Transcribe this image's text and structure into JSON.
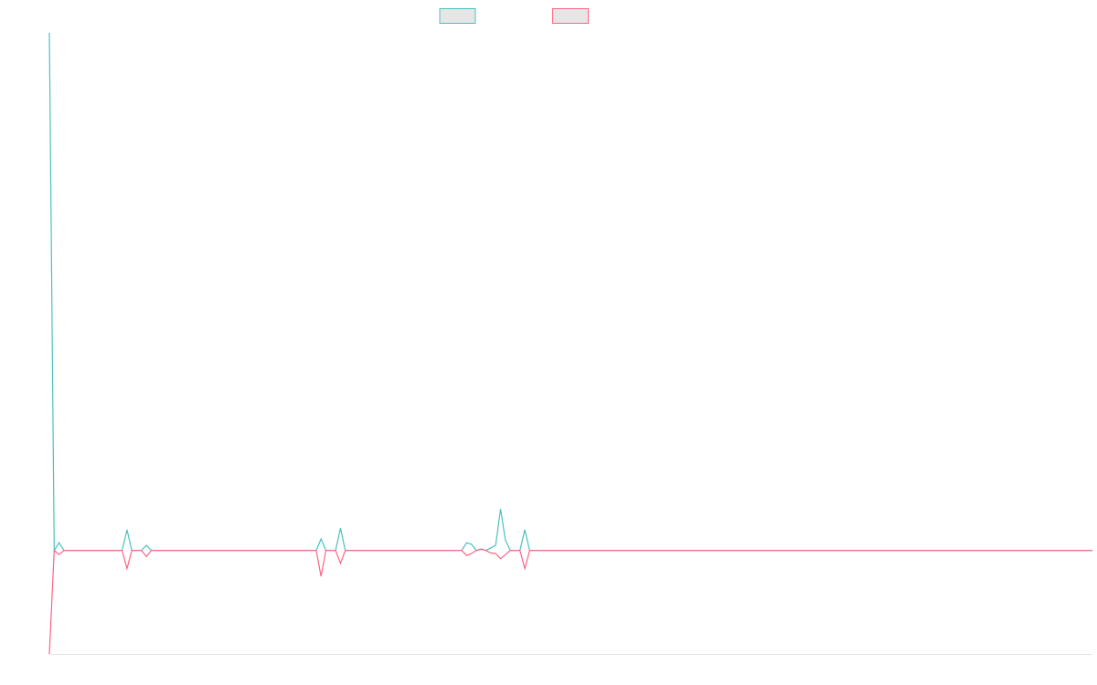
{
  "chart_data": {
    "type": "line",
    "ylim": [
      -20,
      100
    ],
    "series": [
      {
        "color": "#4bc0c0",
        "values": [
          100,
          0,
          1.5,
          0,
          0,
          0,
          0,
          0,
          0,
          0,
          0,
          0,
          0,
          0,
          0,
          0,
          4,
          0,
          0,
          0,
          1,
          0,
          0,
          0,
          0,
          0,
          0,
          0,
          0,
          0,
          0,
          0,
          0,
          0,
          0,
          0,
          0,
          0,
          0,
          0,
          0,
          0,
          0,
          0,
          0,
          0,
          0,
          0,
          0,
          0,
          0,
          0,
          0,
          0,
          0,
          0,
          2.2,
          0,
          0,
          0,
          4.3,
          0,
          0,
          0,
          0,
          0,
          0,
          0,
          0,
          0,
          0,
          0,
          0,
          0,
          0,
          0,
          0,
          0,
          0,
          0,
          0,
          0,
          0,
          0,
          0,
          0,
          1.5,
          1.2,
          0,
          0.3,
          0,
          0.5,
          1,
          8,
          2,
          0,
          0,
          0,
          4,
          0,
          0,
          0,
          0,
          0,
          0,
          0,
          0,
          0,
          0,
          0,
          0,
          0,
          0,
          0,
          0,
          0,
          0,
          0,
          0,
          0,
          0,
          0,
          0,
          0,
          0,
          0,
          0,
          0,
          0,
          0,
          0,
          0,
          0,
          0,
          0,
          0,
          0,
          0,
          0,
          0,
          0,
          0,
          0,
          0,
          0,
          0,
          0,
          0,
          0,
          0,
          0,
          0,
          0,
          0,
          0,
          0,
          0,
          0,
          0,
          0,
          0,
          0,
          0,
          0,
          0,
          0,
          0,
          0,
          0,
          0,
          0,
          0,
          0,
          0,
          0,
          0,
          0,
          0,
          0,
          0,
          0,
          0,
          0,
          0,
          0,
          0,
          0,
          0,
          0,
          0,
          0,
          0,
          0,
          0,
          0,
          0,
          0,
          0,
          0,
          0,
          0,
          0,
          0,
          0,
          0,
          0,
          0,
          0,
          0,
          0,
          0,
          0,
          0,
          0,
          0,
          0
        ]
      },
      {
        "color": "#ff6384",
        "values": [
          -20,
          0,
          -0.8,
          0,
          0,
          0,
          0,
          0,
          0,
          0,
          0,
          0,
          0,
          0,
          0,
          0,
          -3.5,
          0,
          0,
          0,
          -1.2,
          0,
          0,
          0,
          0,
          0,
          0,
          0,
          0,
          0,
          0,
          0,
          0,
          0,
          0,
          0,
          0,
          0,
          0,
          0,
          0,
          0,
          0,
          0,
          0,
          0,
          0,
          0,
          0,
          0,
          0,
          0,
          0,
          0,
          0,
          0,
          -5,
          0,
          0,
          0,
          -2.5,
          0,
          0,
          0,
          0,
          0,
          0,
          0,
          0,
          0,
          0,
          0,
          0,
          0,
          0,
          0,
          0,
          0,
          0,
          0,
          0,
          0,
          0,
          0,
          0,
          0,
          -1,
          -0.6,
          0,
          0.2,
          0,
          -0.5,
          -0.6,
          -1.6,
          -0.8,
          0,
          0,
          0,
          -3.5,
          0,
          0,
          0,
          0,
          0,
          0,
          0,
          0,
          0,
          0,
          0,
          0,
          0,
          0,
          0,
          0,
          0,
          0,
          0,
          0,
          0,
          0,
          0,
          0,
          0,
          0,
          0,
          0,
          0,
          0,
          0,
          0,
          0,
          0,
          0,
          0,
          0,
          0,
          0,
          0,
          0,
          0,
          0,
          0,
          0,
          0,
          0,
          0,
          0,
          0,
          0,
          0,
          0,
          0,
          0,
          0,
          0,
          0,
          0,
          0,
          0,
          0,
          0,
          0,
          0,
          0,
          0,
          0,
          0,
          0,
          0,
          0,
          0,
          0,
          0,
          0,
          0,
          0,
          0,
          0,
          0,
          0,
          0,
          0,
          0,
          0,
          0,
          0,
          0,
          0,
          0,
          0,
          0,
          0,
          0,
          0,
          0,
          0,
          0,
          0,
          0,
          0,
          0,
          0,
          0,
          0,
          0,
          0,
          0,
          0,
          0,
          0,
          0,
          0,
          0,
          0,
          0
        ]
      }
    ]
  }
}
